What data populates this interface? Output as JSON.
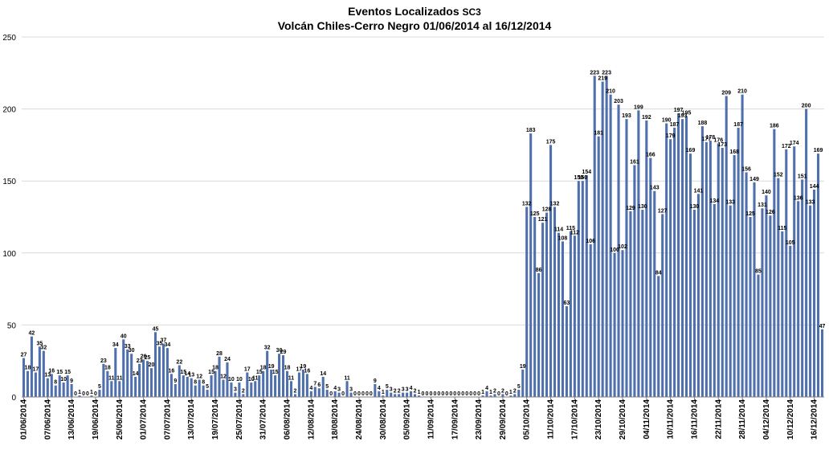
{
  "chart_data": {
    "type": "bar",
    "title": "Eventos Localizados",
    "title_suffix": "SC3",
    "subtitle": "Volcán Chiles-Cerro Negro 01/06/2014 al 16/12/2014",
    "xlabel": "",
    "ylabel": "",
    "ylim": [
      0,
      250
    ],
    "yticks": [
      0,
      50,
      100,
      150,
      200,
      250
    ],
    "grid": true,
    "legend": "none",
    "bar_color": "#4f6fad",
    "x_tick_labels": [
      "01/06/2014",
      "07/06/2014",
      "13/06/2014",
      "19/06/2014",
      "25/06/2014",
      "01/07/2014",
      "07/07/2014",
      "13/07/2014",
      "19/07/2014",
      "25/07/2014",
      "31/07/2014",
      "06/08/2014",
      "12/08/2014",
      "18/08/2014",
      "24/08/2014",
      "30/08/2014",
      "05/09/2014",
      "11/09/2014",
      "17/09/2014",
      "23/09/2014",
      "29/09/2014",
      "05/10/2014",
      "11/10/2014",
      "17/10/2014",
      "23/10/2014",
      "29/10/2014",
      "04/11/2014",
      "10/11/2014",
      "16/11/2014",
      "22/11/2014",
      "28/11/2014",
      "04/12/2014",
      "10/12/2014",
      "16/12/2014"
    ],
    "values": [
      27,
      18,
      42,
      17,
      35,
      32,
      13,
      16,
      8,
      15,
      10,
      15,
      9,
      0,
      1,
      0,
      0,
      1,
      0,
      5,
      23,
      18,
      11,
      34,
      11,
      40,
      33,
      30,
      14,
      23,
      26,
      25,
      20,
      45,
      35,
      37,
      34,
      16,
      9,
      22,
      15,
      14,
      13,
      8,
      12,
      8,
      5,
      15,
      18,
      28,
      12,
      24,
      10,
      3,
      10,
      2,
      17,
      10,
      11,
      15,
      18,
      32,
      19,
      15,
      30,
      29,
      18,
      11,
      2,
      17,
      19,
      16,
      4,
      7,
      6,
      14,
      5,
      0,
      4,
      3,
      0,
      11,
      3,
      0,
      0,
      0,
      0,
      0,
      9,
      4,
      1,
      5,
      3,
      2,
      2,
      3,
      3,
      4,
      2,
      1,
      0,
      0,
      0,
      0,
      0,
      0,
      0,
      0,
      0,
      0,
      0,
      0,
      0,
      0,
      0,
      1,
      4,
      1,
      2,
      0,
      2,
      0,
      1,
      2,
      5,
      19,
      132,
      183,
      125,
      86,
      121,
      128,
      175,
      132,
      114,
      108,
      63,
      115,
      112,
      150,
      150,
      154,
      106,
      223,
      181,
      219,
      223,
      210,
      100,
      203,
      102,
      193,
      129,
      161,
      199,
      130,
      192,
      166,
      143,
      84,
      127,
      190,
      179,
      187,
      197,
      193,
      195,
      169,
      130,
      141,
      188,
      177,
      178,
      134,
      176,
      173,
      209,
      133,
      168,
      187,
      210,
      156,
      125,
      149,
      85,
      131,
      140,
      126,
      186,
      152,
      115,
      172,
      105,
      174,
      136,
      151,
      200,
      133,
      144,
      169,
      47
    ]
  }
}
